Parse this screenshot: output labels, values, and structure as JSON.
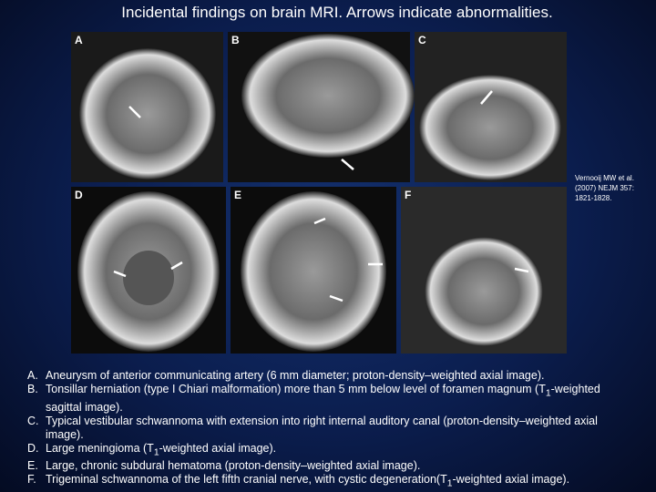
{
  "header": {
    "title": "Incidental findings on brain MRI.  Arrows indicate abnormalities."
  },
  "panels": [
    {
      "label": "A"
    },
    {
      "label": "B"
    },
    {
      "label": "C"
    },
    {
      "label": "D"
    },
    {
      "label": "E"
    },
    {
      "label": "F"
    }
  ],
  "citation": {
    "lines": [
      "Vernooij MW et al.",
      "(2007) NEJM 357:",
      "1821-1828."
    ]
  },
  "findings": [
    {
      "letter": "A.",
      "parts": [
        {
          "text": "Aneurysm of anterior communicating artery (6 mm diameter; proton-density–weighted axial image)."
        }
      ]
    },
    {
      "letter": "B.",
      "parts": [
        {
          "text": "Tonsillar herniation (type I Chiari malformation) more than 5 mm below level of foramen magnum (T"
        },
        {
          "sub": "1"
        },
        {
          "text": "-weighted sagittal image)."
        }
      ]
    },
    {
      "letter": "C.",
      "parts": [
        {
          "text": "Typical vestibular schwannoma with extension into right internal auditory canal (proton-density–weighted axial image)."
        }
      ]
    },
    {
      "letter": "D.",
      "parts": [
        {
          "text": "Large meningioma (T"
        },
        {
          "sub": "1"
        },
        {
          "text": "-weighted axial image)."
        }
      ]
    },
    {
      "letter": "E.",
      "parts": [
        {
          "text": "Large, chronic subdural hematoma (proton-density–weighted axial image)."
        }
      ]
    },
    {
      "letter": "F.",
      "parts": [
        {
          "text": "Trigeminal schwannoma of the left fifth cranial nerve, with cystic degeneration(T"
        },
        {
          "sub": "1"
        },
        {
          "text": "-weighted axial image)."
        }
      ]
    }
  ]
}
